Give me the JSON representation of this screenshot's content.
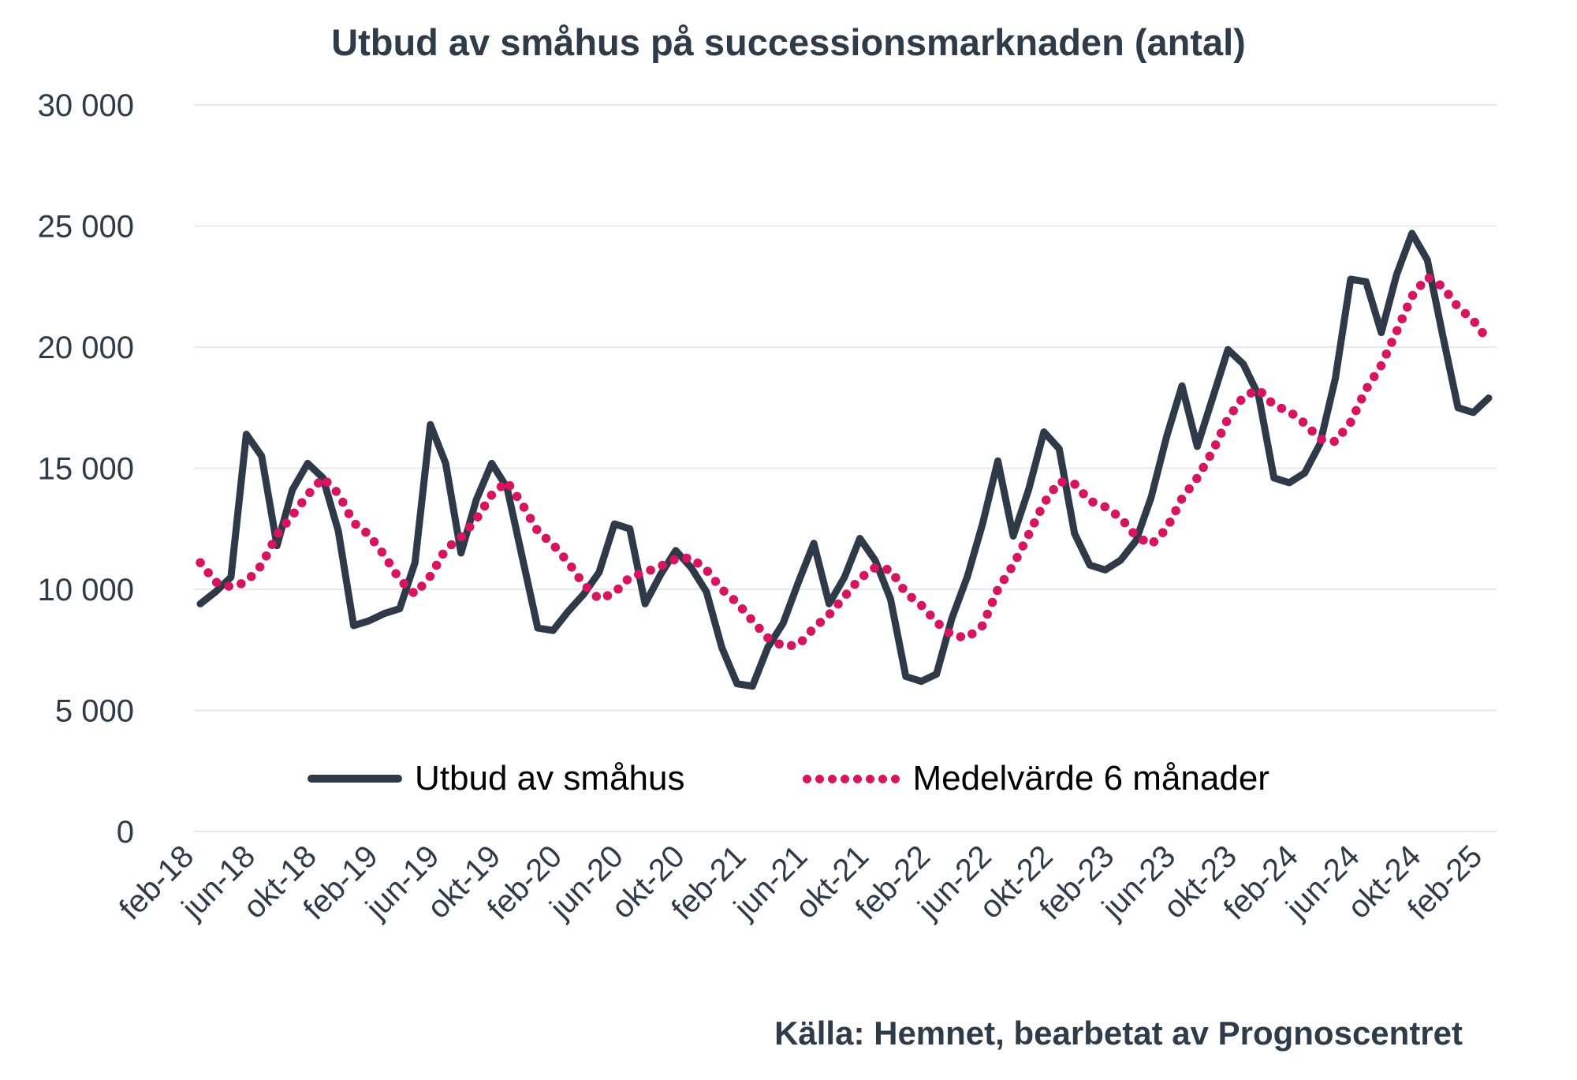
{
  "title": "Utbud av småhus på successionsmarknaden (antal)",
  "source": "Källa: Hemnet, bearbetat av Prognoscentret",
  "legend": {
    "series1_label": "Utbud av småhus",
    "series2_label": "Medelvärde 6 månader"
  },
  "colors": {
    "series1": "#2e3a47",
    "series2": "#d6145f",
    "grid": "#e9e9e9",
    "axis_text": "#2e3b48",
    "background": "#ffffff"
  },
  "chart_data": {
    "type": "line",
    "title": "Utbud av småhus på successionsmarknaden (antal)",
    "xlabel": "",
    "ylabel": "",
    "ylim": [
      0,
      30000
    ],
    "grid": "horizontal",
    "legend_position": "bottom-center",
    "y_tick_values": [
      0,
      5000,
      10000,
      15000,
      20000,
      25000,
      30000
    ],
    "y_tick_labels": [
      "0",
      "5 000",
      "10 000",
      "15 000",
      "20 000",
      "25 000",
      "30 000"
    ],
    "x_tick_labels": [
      "feb-18",
      "jun-18",
      "okt-18",
      "feb-19",
      "jun-19",
      "okt-19",
      "feb-20",
      "jun-20",
      "okt-20",
      "feb-21",
      "jun-21",
      "okt-21",
      "feb-22",
      "jun-22",
      "okt-22",
      "feb-23",
      "jun-23",
      "okt-23",
      "feb-24",
      "jun-24",
      "okt-24",
      "feb-25"
    ],
    "x_tick_every": 4,
    "x": [
      "feb-18",
      "mar-18",
      "apr-18",
      "maj-18",
      "jun-18",
      "jul-18",
      "aug-18",
      "sep-18",
      "okt-18",
      "nov-18",
      "dec-18",
      "jan-19",
      "feb-19",
      "mar-19",
      "apr-19",
      "maj-19",
      "jun-19",
      "jul-19",
      "aug-19",
      "sep-19",
      "okt-19",
      "nov-19",
      "dec-19",
      "jan-20",
      "feb-20",
      "mar-20",
      "apr-20",
      "maj-20",
      "jun-20",
      "jul-20",
      "aug-20",
      "sep-20",
      "okt-20",
      "nov-20",
      "dec-20",
      "jan-21",
      "feb-21",
      "mar-21",
      "apr-21",
      "maj-21",
      "jun-21",
      "jul-21",
      "aug-21",
      "sep-21",
      "okt-21",
      "nov-21",
      "dec-21",
      "jan-22",
      "feb-22",
      "mar-22",
      "apr-22",
      "maj-22",
      "jun-22",
      "jul-22",
      "aug-22",
      "sep-22",
      "okt-22",
      "nov-22",
      "dec-22",
      "jan-23",
      "feb-23",
      "mar-23",
      "apr-23",
      "maj-23",
      "jun-23",
      "jul-23",
      "aug-23",
      "sep-23",
      "okt-23",
      "nov-23",
      "dec-23",
      "jan-24",
      "feb-24",
      "mar-24",
      "apr-24",
      "maj-24",
      "jun-24",
      "jul-24",
      "aug-24",
      "sep-24",
      "okt-24",
      "nov-24",
      "dec-24",
      "jan-25",
      "feb-25"
    ],
    "series": [
      {
        "name": "Utbud av småhus",
        "style": "solid",
        "color": "#2e3a47",
        "values": [
          9400,
          9900,
          10500,
          16400,
          15500,
          11800,
          14100,
          15200,
          14600,
          12400,
          8500,
          8700,
          9000,
          9200,
          11100,
          16800,
          15200,
          11500,
          13700,
          15200,
          14200,
          11300,
          8400,
          8300,
          9100,
          9800,
          10700,
          12700,
          12500,
          9400,
          10600,
          11600,
          10900,
          9900,
          7600,
          6100,
          6000,
          7600,
          8600,
          10300,
          11900,
          9400,
          10500,
          12100,
          11200,
          9600,
          6400,
          6200,
          6500,
          8800,
          10500,
          12700,
          15300,
          12200,
          14100,
          16500,
          15800,
          12300,
          11000,
          10800,
          11200,
          12000,
          13800,
          16300,
          18400,
          15900,
          17900,
          19900,
          19300,
          18000,
          14600,
          14400,
          14800,
          16000,
          18700,
          22800,
          22700,
          20600,
          23000,
          24700,
          23600,
          20500,
          17500,
          17300,
          17900
        ]
      },
      {
        "name": "Medelvärde 6 månader",
        "style": "dotted",
        "color": "#d6145f",
        "values": [
          11100,
          10300,
          10100,
          10300,
          11000,
          12250,
          13050,
          13900,
          14600,
          13950,
          12750,
          12250,
          11400,
          10400,
          9800,
          10550,
          11650,
          12150,
          12900,
          13900,
          14450,
          13500,
          12400,
          11850,
          11100,
          10200,
          9600,
          9850,
          10500,
          10700,
          10950,
          11250,
          11300,
          10800,
          10000,
          9450,
          8700,
          8000,
          7650,
          7700,
          8400,
          8950,
          9700,
          10450,
          10900,
          10800,
          9850,
          9350,
          8650,
          8100,
          8000,
          8500,
          10000,
          11000,
          12250,
          13550,
          14450,
          14350,
          13650,
          13400,
          12950,
          12200,
          11850,
          12500,
          13750,
          14600,
          15700,
          17050,
          17950,
          18250,
          17600,
          17350,
          16850,
          16200,
          16100,
          16900,
          18250,
          19250,
          20650,
          22100,
          22900,
          22500,
          21650,
          21100,
          20250
        ]
      }
    ]
  }
}
